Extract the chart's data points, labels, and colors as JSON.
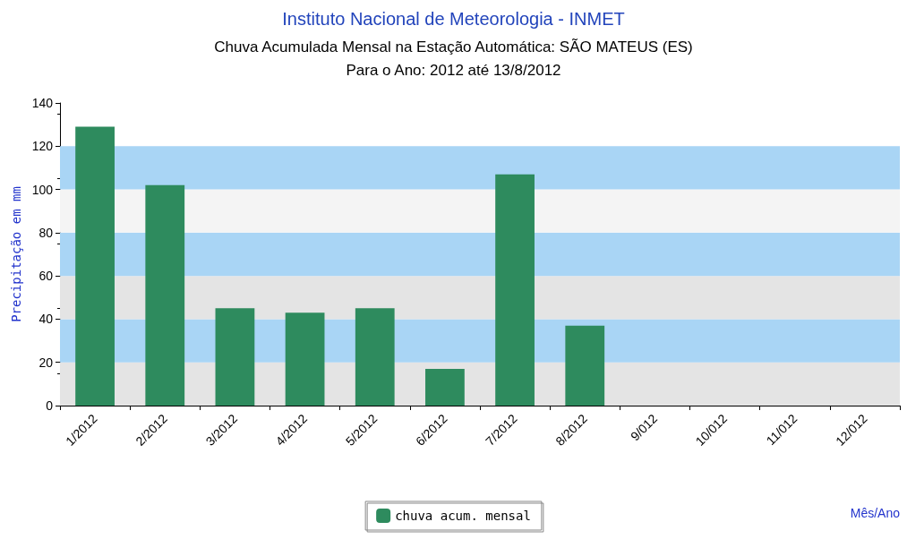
{
  "chart_data": {
    "type": "bar",
    "title": "Instituto Nacional de Meteorologia - INMET",
    "subtitle": "Chuva Acumulada Mensal na Estação Automática: SÃO MATEUS (ES)\nPara o Ano: 2012 até 13/8/2012",
    "annotations": [
      "Mês/Ano"
    ],
    "ylabel": "Precipitação em mm",
    "categories": [
      "1/2012",
      "2/2012",
      "3/2012",
      "4/2012",
      "5/2012",
      "6/2012",
      "7/2012",
      "8/2012",
      "9/012",
      "10/012",
      "11/012",
      "12/012"
    ],
    "series": [
      {
        "name": "chuva acum. mensal",
        "color": "#2e8b5e",
        "values": [
          129,
          102,
          45,
          43,
          45,
          17,
          107,
          37,
          null,
          null,
          null,
          null
        ]
      }
    ],
    "ylim": [
      0,
      140
    ],
    "yticks": [
      0,
      20,
      40,
      60,
      80,
      100,
      120,
      140
    ],
    "bands": [
      {
        "axis": "y",
        "from": 0,
        "to": 20,
        "color": "#e4e4e4"
      },
      {
        "axis": "y",
        "from": 20,
        "to": 40,
        "color": "#a9d5f5"
      },
      {
        "axis": "y",
        "from": 40,
        "to": 60,
        "color": "#e4e4e4"
      },
      {
        "axis": "y",
        "from": 60,
        "to": 80,
        "color": "#a9d5f5"
      },
      {
        "axis": "y",
        "from": 80,
        "to": 100,
        "color": "#f4f4f4"
      },
      {
        "axis": "y",
        "from": 100,
        "to": 120,
        "color": "#a9d5f5"
      }
    ],
    "legend": "bottom"
  }
}
